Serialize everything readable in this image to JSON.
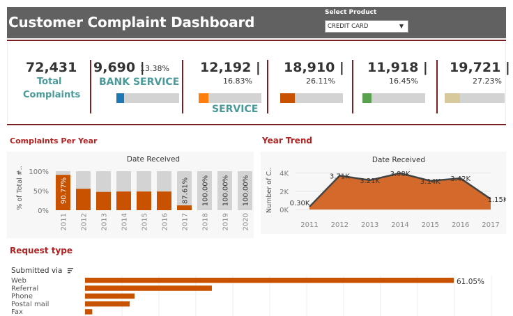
{
  "header": {
    "title": "Customer Complaint Dashboard",
    "select_label": "Select Product",
    "select_value": "CREDIT CARD",
    "select_arrow": "▼"
  },
  "kpis": {
    "total": {
      "value": "72,431",
      "label_line1": "Total",
      "label_line2": "Complaints"
    },
    "k1": {
      "value": "9,690 |",
      "pct": "13.38%",
      "label": "BANK SERVICE",
      "color": "#1f77b4",
      "fill": 0.1338
    },
    "k2": {
      "value": "12,192 |",
      "pct": "16.83%",
      "label": "SERVICE",
      "color": "#ff7f0e",
      "fill": 0.1683
    },
    "k3": {
      "value": "18,910 |",
      "pct": "26.11%",
      "color": "#c85200",
      "fill": 0.2611
    },
    "k4": {
      "value": "11,918 |",
      "pct": "16.45%",
      "color": "#59a14f",
      "fill": 0.1645
    },
    "k5": {
      "value": "19,721 |",
      "pct": "27.23%",
      "color": "#d7c99b",
      "fill": 0.2723
    }
  },
  "sections": {
    "per_year": "Complaints Per Year",
    "year_trend": "Year Trend",
    "request_type": "Request type"
  },
  "chart_data": [
    {
      "type": "bar",
      "title": "Date Received",
      "ylabel": "% of Total #..",
      "yticks": [
        "100%",
        "50%",
        "0%"
      ],
      "categories": [
        "2011",
        "2012",
        "2013",
        "2014",
        "2015",
        "2016",
        "2017",
        "2018",
        "2019",
        "2020"
      ],
      "values": [
        90.77,
        55,
        47,
        48,
        48,
        48,
        12.39,
        0,
        0,
        0
      ],
      "data_labels": [
        "90.77%",
        "",
        "",
        "",
        "",
        "",
        "87.61%",
        "100.00%",
        "100.00%",
        "100.00%"
      ],
      "colors": {
        "fill": "#c85200",
        "remainder": "#d3d3d3"
      }
    },
    {
      "type": "area",
      "title": "Date Received",
      "ylabel": "Number of C..",
      "yticks": [
        "4K",
        "2K",
        "0K"
      ],
      "ylim": [
        0,
        4500
      ],
      "x": [
        "2011",
        "2012",
        "2013",
        "2014",
        "2015",
        "2016",
        "2017"
      ],
      "values": [
        300,
        3710,
        3210,
        3980,
        3140,
        3420,
        1150
      ],
      "data_labels": [
        "0.30K",
        "3.71K",
        "3.21K",
        "3.98K",
        "3.14K",
        "3.42K",
        "1.15K"
      ],
      "colors": {
        "fill": "#d3692a",
        "line": "#444444"
      }
    },
    {
      "type": "bar",
      "orientation": "horizontal",
      "header": "Submitted via",
      "sort_icon": "sort-icon",
      "categories": [
        "Web",
        "Referral",
        "Phone",
        "Postal mail",
        "Fax"
      ],
      "values": [
        61.05,
        21,
        8.2,
        7.4,
        1.2
      ],
      "data_labels": [
        "61.05%",
        "",
        "",
        "",
        ""
      ],
      "colors": {
        "fill": "#c85200"
      }
    }
  ]
}
